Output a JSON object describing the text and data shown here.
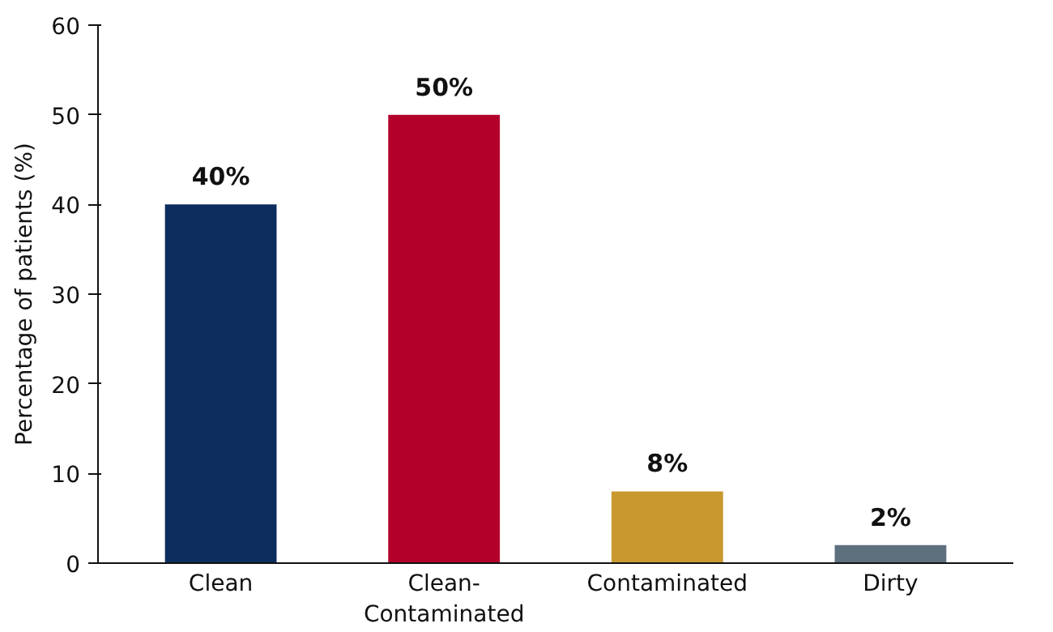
{
  "chart_data": {
    "type": "bar",
    "ylabel": "Percentage of patients (%)",
    "categories": [
      "Clean",
      "Clean-Contaminated",
      "Contaminated",
      "Dirty"
    ],
    "values": [
      40,
      50,
      8,
      2
    ],
    "colors": [
      "#0c2d5e",
      "#b3002b",
      "#c9992f",
      "#5e6f7e"
    ],
    "value_labels": [
      "40%",
      "50%",
      "8%",
      "2%"
    ],
    "ylim": [
      0,
      60
    ],
    "yticks": [
      0,
      10,
      20,
      30,
      40,
      50,
      60
    ],
    "grid": false
  }
}
